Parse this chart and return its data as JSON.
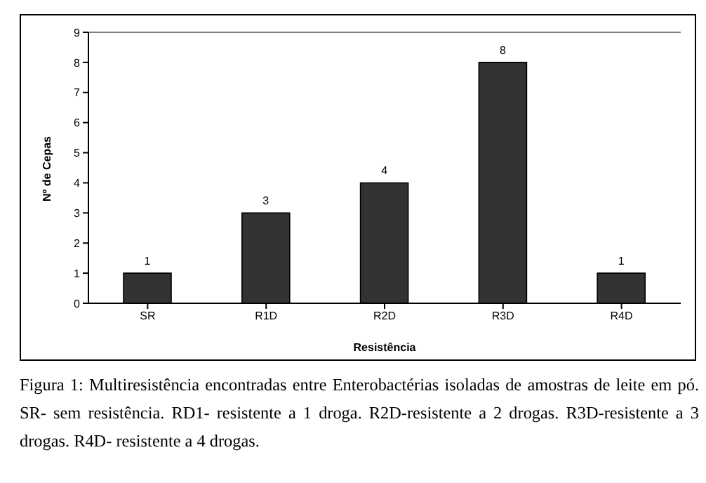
{
  "chart_data": {
    "type": "bar",
    "xlabel": "Resistência",
    "ylabel": "Nº de Cepas",
    "categories": [
      "SR",
      "R1D",
      "R2D",
      "R3D",
      "R4D"
    ],
    "values": [
      1,
      3,
      4,
      8,
      1
    ],
    "color": "#333333",
    "ylim": [
      0,
      9
    ],
    "yticks": [
      0,
      1,
      2,
      3,
      4,
      5,
      6,
      7,
      8,
      9
    ],
    "grid": false,
    "data_labels": true,
    "annotations": [
      "Figura 1: Multiresistência encontradas entre Enterobactérias isoladas de amostras de leite em pó. SR- sem resistência. RD1- resistente a 1 droga. R2D-resistente a 2 drogas. R3D-resistente a 3 drogas. R4D- resistente a 4 drogas."
    ]
  }
}
